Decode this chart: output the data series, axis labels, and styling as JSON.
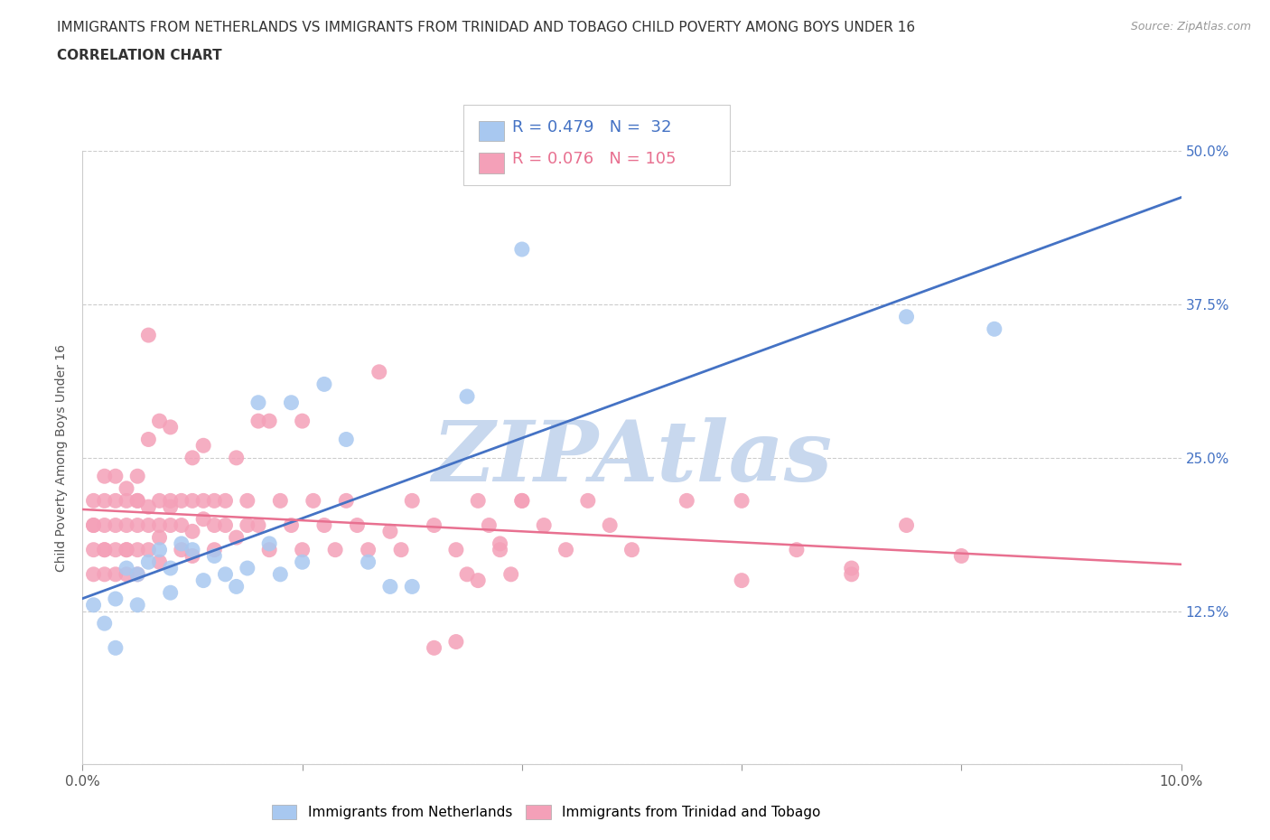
{
  "title_line1": "IMMIGRANTS FROM NETHERLANDS VS IMMIGRANTS FROM TRINIDAD AND TOBAGO CHILD POVERTY AMONG BOYS UNDER 16",
  "title_line2": "CORRELATION CHART",
  "source": "Source: ZipAtlas.com",
  "ylabel": "Child Poverty Among Boys Under 16",
  "xlim": [
    0.0,
    0.1
  ],
  "ylim": [
    0.0,
    0.5
  ],
  "yticks": [
    0.0,
    0.125,
    0.25,
    0.375,
    0.5
  ],
  "ytick_labels_right": [
    "",
    "12.5%",
    "25.0%",
    "37.5%",
    "50.0%"
  ],
  "xticks": [
    0.0,
    0.02,
    0.04,
    0.06,
    0.08,
    0.1
  ],
  "xtick_labels": [
    "0.0%",
    "",
    "",
    "",
    "",
    "10.0%"
  ],
  "nl_label": "Immigrants from Netherlands",
  "tt_label": "Immigrants from Trinidad and Tobago",
  "nl_R": 0.479,
  "nl_N": 32,
  "tt_R": 0.076,
  "tt_N": 105,
  "nl_color": "#A8C8F0",
  "tt_color": "#F4A0B8",
  "nl_trend_color": "#4472C4",
  "tt_trend_color": "#E87090",
  "legend_color": "#4472C4",
  "watermark_text": "ZIPAtlas",
  "watermark_color": "#C8D8EE",
  "background_color": "#ffffff",
  "grid_color": "#cccccc",
  "title_color": "#333333",
  "nl_x": [
    0.001,
    0.002,
    0.003,
    0.003,
    0.004,
    0.005,
    0.005,
    0.006,
    0.007,
    0.008,
    0.008,
    0.009,
    0.01,
    0.011,
    0.012,
    0.013,
    0.014,
    0.015,
    0.016,
    0.017,
    0.018,
    0.019,
    0.02,
    0.022,
    0.024,
    0.026,
    0.028,
    0.03,
    0.035,
    0.04,
    0.075,
    0.083
  ],
  "nl_y": [
    0.13,
    0.115,
    0.095,
    0.135,
    0.16,
    0.155,
    0.13,
    0.165,
    0.175,
    0.14,
    0.16,
    0.18,
    0.175,
    0.15,
    0.17,
    0.155,
    0.145,
    0.16,
    0.295,
    0.18,
    0.155,
    0.295,
    0.165,
    0.31,
    0.265,
    0.165,
    0.145,
    0.145,
    0.3,
    0.42,
    0.365,
    0.355
  ],
  "tt_x": [
    0.001,
    0.001,
    0.001,
    0.001,
    0.001,
    0.002,
    0.002,
    0.002,
    0.002,
    0.002,
    0.002,
    0.003,
    0.003,
    0.003,
    0.003,
    0.003,
    0.004,
    0.004,
    0.004,
    0.004,
    0.004,
    0.004,
    0.005,
    0.005,
    0.005,
    0.005,
    0.005,
    0.005,
    0.006,
    0.006,
    0.006,
    0.006,
    0.006,
    0.007,
    0.007,
    0.007,
    0.007,
    0.007,
    0.008,
    0.008,
    0.008,
    0.008,
    0.009,
    0.009,
    0.009,
    0.01,
    0.01,
    0.01,
    0.01,
    0.011,
    0.011,
    0.011,
    0.012,
    0.012,
    0.012,
    0.013,
    0.013,
    0.014,
    0.014,
    0.015,
    0.015,
    0.016,
    0.016,
    0.017,
    0.017,
    0.018,
    0.019,
    0.02,
    0.02,
    0.021,
    0.022,
    0.023,
    0.024,
    0.025,
    0.026,
    0.027,
    0.028,
    0.029,
    0.03,
    0.032,
    0.034,
    0.035,
    0.036,
    0.037,
    0.038,
    0.039,
    0.04,
    0.042,
    0.044,
    0.046,
    0.048,
    0.05,
    0.055,
    0.06,
    0.065,
    0.07,
    0.075,
    0.08,
    0.04,
    0.038,
    0.036,
    0.034,
    0.032,
    0.06,
    0.07
  ],
  "tt_y": [
    0.195,
    0.175,
    0.215,
    0.195,
    0.155,
    0.215,
    0.195,
    0.175,
    0.155,
    0.235,
    0.175,
    0.215,
    0.195,
    0.175,
    0.155,
    0.235,
    0.175,
    0.215,
    0.195,
    0.175,
    0.225,
    0.155,
    0.215,
    0.195,
    0.175,
    0.235,
    0.155,
    0.215,
    0.35,
    0.21,
    0.195,
    0.175,
    0.265,
    0.215,
    0.195,
    0.28,
    0.185,
    0.165,
    0.215,
    0.21,
    0.195,
    0.275,
    0.215,
    0.195,
    0.175,
    0.215,
    0.25,
    0.19,
    0.17,
    0.215,
    0.26,
    0.2,
    0.215,
    0.195,
    0.175,
    0.215,
    0.195,
    0.25,
    0.185,
    0.215,
    0.195,
    0.28,
    0.195,
    0.28,
    0.175,
    0.215,
    0.195,
    0.28,
    0.175,
    0.215,
    0.195,
    0.175,
    0.215,
    0.195,
    0.175,
    0.32,
    0.19,
    0.175,
    0.215,
    0.195,
    0.175,
    0.155,
    0.215,
    0.195,
    0.175,
    0.155,
    0.215,
    0.195,
    0.175,
    0.215,
    0.195,
    0.175,
    0.215,
    0.215,
    0.175,
    0.155,
    0.195,
    0.17,
    0.215,
    0.18,
    0.15,
    0.1,
    0.095,
    0.15,
    0.16
  ]
}
